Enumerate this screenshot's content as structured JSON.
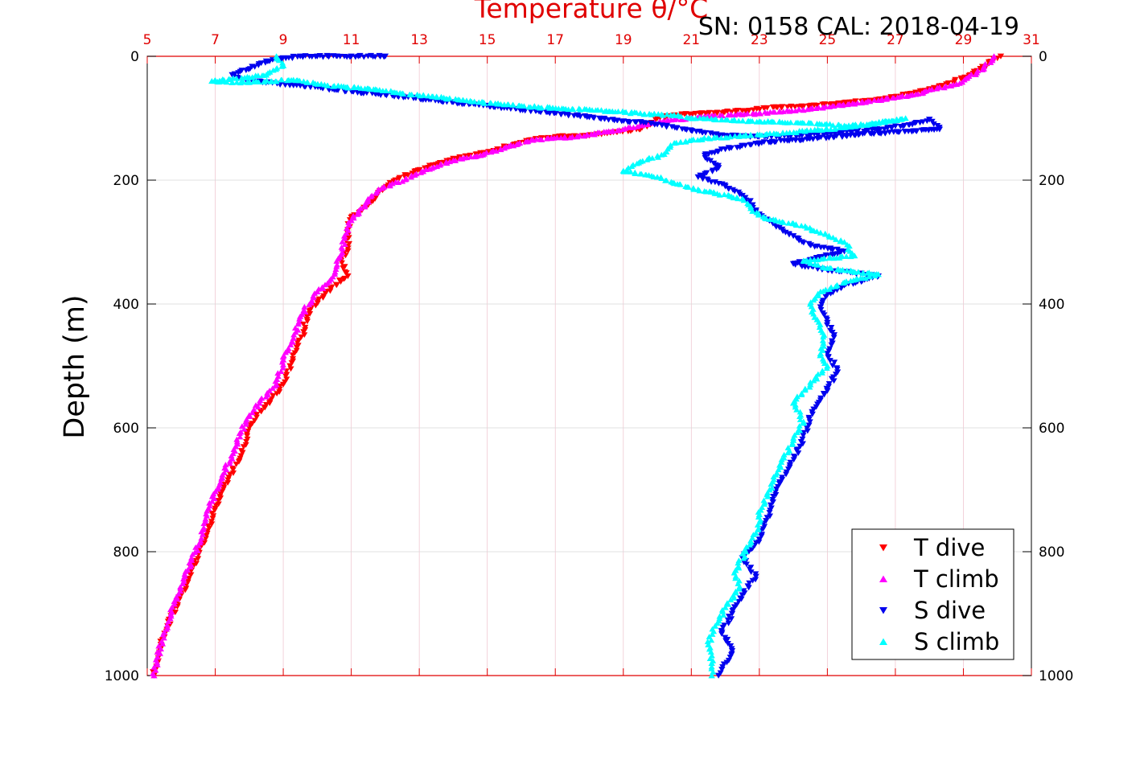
{
  "chart_data": {
    "type": "scatter",
    "title": "Temperature θ/°C",
    "annotation": "SN: 0158  CAL: 2018-04-19",
    "ylabel": "Depth (m)",
    "xlabel": "",
    "x_ticks": [
      "5",
      "7",
      "9",
      "11",
      "13",
      "15",
      "17",
      "19",
      "21",
      "23",
      "25",
      "27",
      "29",
      "31"
    ],
    "y_ticks_left": [
      "0",
      "200",
      "400",
      "600",
      "800",
      "1000"
    ],
    "y_ticks_right": [
      "0",
      "200",
      "400",
      "600",
      "800",
      "1000"
    ],
    "xlim": [
      5,
      31
    ],
    "ylim": [
      0,
      1000
    ],
    "y_inverted": true,
    "grid": true,
    "legend_position": "bottom-right",
    "series": [
      {
        "name": "T dive",
        "marker": "triangle-down",
        "color": "#ff0000",
        "points": [
          [
            30.1,
            0
          ],
          [
            29.9,
            5
          ],
          [
            29.5,
            20
          ],
          [
            29.2,
            30
          ],
          [
            28.5,
            45
          ],
          [
            27.5,
            60
          ],
          [
            26.5,
            70
          ],
          [
            25.5,
            75
          ],
          [
            24.5,
            80
          ],
          [
            23.5,
            82
          ],
          [
            22.5,
            88
          ],
          [
            21.5,
            92
          ],
          [
            20.5,
            95
          ],
          [
            20.0,
            100
          ],
          [
            19.8,
            110
          ],
          [
            19.5,
            118
          ],
          [
            18.8,
            122
          ],
          [
            18.0,
            128
          ],
          [
            17.0,
            130
          ],
          [
            16.3,
            135
          ],
          [
            15.8,
            142
          ],
          [
            15.3,
            150
          ],
          [
            14.7,
            158
          ],
          [
            14.0,
            165
          ],
          [
            13.5,
            175
          ],
          [
            12.9,
            185
          ],
          [
            12.3,
            200
          ],
          [
            11.8,
            220
          ],
          [
            11.5,
            240
          ],
          [
            11.0,
            260
          ],
          [
            10.9,
            280
          ],
          [
            10.9,
            310
          ],
          [
            10.7,
            330
          ],
          [
            10.9,
            355
          ],
          [
            10.4,
            375
          ],
          [
            10.0,
            395
          ],
          [
            9.7,
            420
          ],
          [
            9.6,
            445
          ],
          [
            9.4,
            470
          ],
          [
            9.2,
            500
          ],
          [
            9.0,
            530
          ],
          [
            8.6,
            560
          ],
          [
            8.2,
            580
          ],
          [
            8.0,
            600
          ],
          [
            7.8,
            640
          ],
          [
            7.4,
            680
          ],
          [
            7.0,
            730
          ],
          [
            6.6,
            790
          ],
          [
            6.3,
            830
          ],
          [
            6.0,
            870
          ],
          [
            5.6,
            920
          ],
          [
            5.4,
            950
          ],
          [
            5.3,
            980
          ],
          [
            5.2,
            1000
          ]
        ]
      },
      {
        "name": "T climb",
        "marker": "triangle-up",
        "color": "#ff00ff",
        "points": [
          [
            29.9,
            0
          ],
          [
            29.6,
            20
          ],
          [
            28.8,
            45
          ],
          [
            27.5,
            62
          ],
          [
            26.0,
            75
          ],
          [
            24.5,
            85
          ],
          [
            23.0,
            92
          ],
          [
            21.5,
            97
          ],
          [
            20.5,
            102
          ],
          [
            19.8,
            108
          ],
          [
            19.2,
            115
          ],
          [
            18.5,
            122
          ],
          [
            17.5,
            130
          ],
          [
            16.3,
            135
          ],
          [
            15.5,
            148
          ],
          [
            14.8,
            160
          ],
          [
            14.0,
            168
          ],
          [
            13.3,
            182
          ],
          [
            12.6,
            198
          ],
          [
            11.8,
            215
          ],
          [
            11.4,
            240
          ],
          [
            11.0,
            265
          ],
          [
            10.8,
            290
          ],
          [
            10.7,
            320
          ],
          [
            10.4,
            360
          ],
          [
            10.0,
            380
          ],
          [
            9.5,
            420
          ],
          [
            9.3,
            455
          ],
          [
            9.0,
            490
          ],
          [
            8.8,
            530
          ],
          [
            8.3,
            560
          ],
          [
            7.9,
            590
          ],
          [
            7.6,
            630
          ],
          [
            7.2,
            680
          ],
          [
            6.8,
            730
          ],
          [
            6.5,
            790
          ],
          [
            6.1,
            840
          ],
          [
            5.8,
            880
          ],
          [
            5.5,
            930
          ],
          [
            5.3,
            970
          ],
          [
            5.2,
            1000
          ]
        ]
      },
      {
        "name": "S dive",
        "marker": "triangle-down",
        "color": "#0000ee",
        "points": [
          [
            12.0,
            0
          ],
          [
            11.0,
            0
          ],
          [
            10.0,
            0
          ],
          [
            9.5,
            0
          ],
          [
            8.5,
            8
          ],
          [
            7.5,
            30
          ],
          [
            7.8,
            38
          ],
          [
            20.0,
            110
          ],
          [
            21.0,
            120
          ],
          [
            22.0,
            128
          ],
          [
            23.5,
            130
          ],
          [
            25.0,
            125
          ],
          [
            26.5,
            118
          ],
          [
            27.5,
            110
          ],
          [
            28.0,
            102
          ],
          [
            28.3,
            118
          ],
          [
            26.3,
            125
          ],
          [
            23.0,
            140
          ],
          [
            22.0,
            150
          ],
          [
            21.4,
            160
          ],
          [
            21.8,
            180
          ],
          [
            21.2,
            195
          ],
          [
            22.0,
            210
          ],
          [
            22.5,
            225
          ],
          [
            22.8,
            240
          ],
          [
            23.0,
            255
          ],
          [
            23.4,
            270
          ],
          [
            24.0,
            290
          ],
          [
            24.5,
            305
          ],
          [
            25.5,
            315
          ],
          [
            24.0,
            335
          ],
          [
            25.0,
            345
          ],
          [
            26.5,
            355
          ],
          [
            25.5,
            370
          ],
          [
            25.0,
            385
          ],
          [
            24.8,
            405
          ],
          [
            25.0,
            430
          ],
          [
            25.2,
            450
          ],
          [
            25.0,
            480
          ],
          [
            25.3,
            510
          ],
          [
            25.0,
            540
          ],
          [
            24.6,
            570
          ],
          [
            24.4,
            600
          ],
          [
            24.2,
            630
          ],
          [
            23.9,
            660
          ],
          [
            23.6,
            690
          ],
          [
            23.4,
            720
          ],
          [
            23.2,
            750
          ],
          [
            23.0,
            780
          ],
          [
            22.5,
            810
          ],
          [
            22.9,
            840
          ],
          [
            22.5,
            870
          ],
          [
            22.2,
            900
          ],
          [
            21.9,
            930
          ],
          [
            22.2,
            960
          ],
          [
            21.9,
            990
          ],
          [
            21.8,
            1000
          ]
        ]
      },
      {
        "name": "S climb",
        "marker": "triangle-up",
        "color": "#00ffff",
        "points": [
          [
            8.8,
            0
          ],
          [
            9.0,
            15
          ],
          [
            8.5,
            30
          ],
          [
            6.9,
            40
          ],
          [
            8.0,
            42
          ],
          [
            9.3,
            38
          ],
          [
            10.5,
            48
          ],
          [
            11.5,
            52
          ],
          [
            12.5,
            60
          ],
          [
            13.4,
            65
          ],
          [
            14.5,
            72
          ],
          [
            15.5,
            78
          ],
          [
            16.5,
            82
          ],
          [
            17.5,
            85
          ],
          [
            18.5,
            88
          ],
          [
            19.5,
            92
          ],
          [
            20.5,
            95
          ],
          [
            21.0,
            100
          ],
          [
            23.0,
            105
          ],
          [
            24.5,
            108
          ],
          [
            25.5,
            112
          ],
          [
            26.5,
            108
          ],
          [
            27.3,
            100
          ],
          [
            25.5,
            115
          ],
          [
            23.5,
            125
          ],
          [
            21.5,
            132
          ],
          [
            20.5,
            140
          ],
          [
            20.2,
            158
          ],
          [
            19.5,
            170
          ],
          [
            19.0,
            185
          ],
          [
            20.0,
            195
          ],
          [
            20.5,
            205
          ],
          [
            21.2,
            215
          ],
          [
            22.5,
            230
          ],
          [
            22.8,
            250
          ],
          [
            23.2,
            262
          ],
          [
            24.0,
            270
          ],
          [
            24.8,
            285
          ],
          [
            25.5,
            300
          ],
          [
            25.8,
            322
          ],
          [
            24.3,
            330
          ],
          [
            25.0,
            342
          ],
          [
            26.5,
            352
          ],
          [
            25.5,
            365
          ],
          [
            24.8,
            380
          ],
          [
            24.5,
            400
          ],
          [
            24.7,
            425
          ],
          [
            24.9,
            450
          ],
          [
            24.8,
            480
          ],
          [
            25.0,
            500
          ],
          [
            24.5,
            530
          ],
          [
            24.0,
            560
          ],
          [
            24.3,
            590
          ],
          [
            24.0,
            620
          ],
          [
            23.6,
            660
          ],
          [
            23.3,
            700
          ],
          [
            23.0,
            740
          ],
          [
            22.9,
            770
          ],
          [
            22.6,
            800
          ],
          [
            22.3,
            830
          ],
          [
            22.4,
            860
          ],
          [
            22.0,
            890
          ],
          [
            21.7,
            920
          ],
          [
            21.5,
            950
          ],
          [
            21.6,
            980
          ],
          [
            21.6,
            1000
          ]
        ]
      }
    ]
  }
}
